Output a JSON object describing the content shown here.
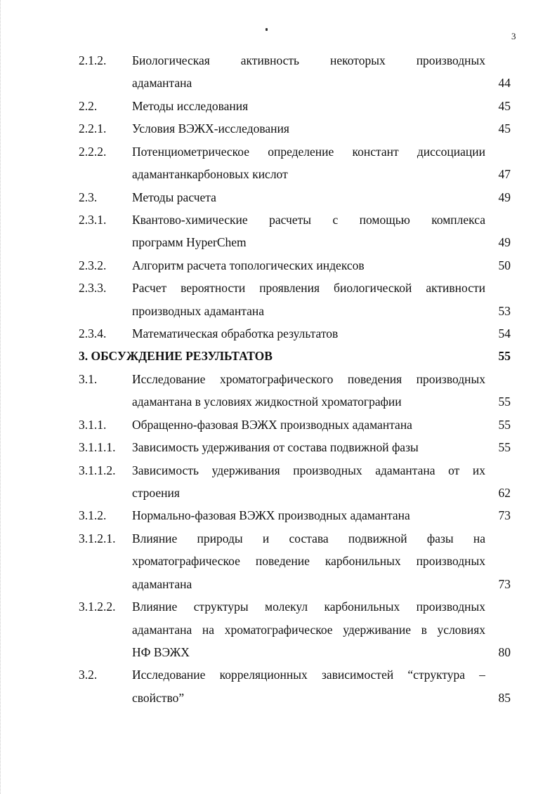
{
  "page_number": "3",
  "toc": [
    {
      "num": "2.1.2.",
      "lines": [
        "Биологическая активность некоторых производных",
        "адамантана"
      ],
      "page": "44"
    },
    {
      "num": "2.2.",
      "lines": [
        "Методы исследования"
      ],
      "page": "45"
    },
    {
      "num": "2.2.1.",
      "lines": [
        "Условия ВЭЖХ-исследования"
      ],
      "page": "45"
    },
    {
      "num": "2.2.2.",
      "lines": [
        "Потенциометрическое определение констант диссоциации",
        "адамантанкарбоновых кислот"
      ],
      "page": "47"
    },
    {
      "num": "2.3.",
      "lines": [
        "Методы расчета"
      ],
      "page": "49"
    },
    {
      "num": "2.3.1.",
      "lines": [
        "Квантово-химические расчеты с помощью комплекса",
        "программ HyperChem"
      ],
      "page": "49"
    },
    {
      "num": "2.3.2.",
      "lines": [
        "Алгоритм расчета топологических индексов"
      ],
      "page": "50"
    },
    {
      "num": "2.3.3.",
      "lines": [
        "Расчет вероятности проявления биологической активности",
        "производных адамантана"
      ],
      "page": "53"
    },
    {
      "num": "2.3.4.",
      "lines": [
        "Математическая обработка результатов"
      ],
      "page": "54"
    },
    {
      "num": "",
      "lines": [
        "3. ОБСУЖДЕНИЕ РЕЗУЛЬТАТОВ"
      ],
      "page": "55",
      "bold": true
    },
    {
      "num": "3.1.",
      "lines": [
        "Исследование хроматографического поведения производных",
        "адамантана в условиях жидкостной хроматографии"
      ],
      "page": "55"
    },
    {
      "num": "3.1.1.",
      "lines": [
        "Обращенно-фазовая ВЭЖХ производных адамантана"
      ],
      "page": "55"
    },
    {
      "num": "3.1.1.1.",
      "lines": [
        "Зависимость удерживания от состава подвижной фазы"
      ],
      "page": "55"
    },
    {
      "num": "3.1.1.2.",
      "lines": [
        "Зависимость удерживания производных адамантана от их",
        "строения"
      ],
      "page": "62"
    },
    {
      "num": "3.1.2.",
      "lines": [
        "Нормально-фазовая ВЭЖХ производных адамантана"
      ],
      "page": "73"
    },
    {
      "num": "3.1.2.1.",
      "lines": [
        "Влияние природы и состава подвижной фазы на",
        "хроматографическое поведение карбонильных производных",
        "адамантана"
      ],
      "page": "73"
    },
    {
      "num": "3.1.2.2.",
      "lines": [
        "Влияние структуры молекул карбонильных производных",
        "адамантана на хроматографическое удерживание в условиях",
        "НФ ВЭЖХ"
      ],
      "page": "80"
    },
    {
      "num": "3.2.",
      "lines": [
        "Исследование корреляционных зависимостей “структура –",
        "свойство”"
      ],
      "page": "85"
    }
  ]
}
